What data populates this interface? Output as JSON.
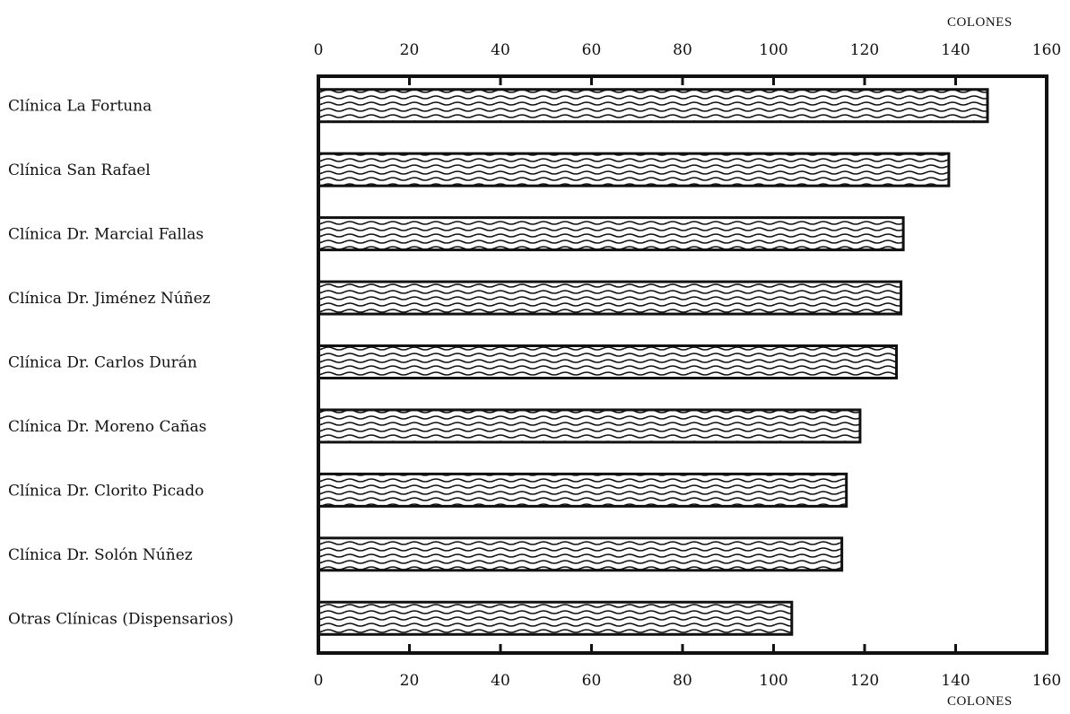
{
  "chart_data": {
    "type": "bar",
    "orientation": "horizontal",
    "title": "",
    "xlabel_top": "COLONES",
    "xlabel_bottom": "COLONES",
    "xlim": [
      0,
      160
    ],
    "xticks": [
      0,
      20,
      40,
      60,
      80,
      100,
      120,
      140,
      160
    ],
    "categories": [
      "Clínica La Fortuna",
      "Clínica San Rafael",
      "Clínica Dr. Marcial Fallas",
      "Clínica Dr. Jiménez Núñez",
      "Clínica Dr. Carlos Durán",
      "Clínica Dr. Moreno Cañas",
      "Clínica Dr. Clorito Picado",
      "Clínica Dr. Solón Núñez",
      "Otras Clínicas (Dispensarios)"
    ],
    "values": [
      147,
      138.5,
      128.5,
      128,
      127,
      119,
      116,
      115,
      104
    ],
    "bar_pattern": "wavy-hatch",
    "bar_color": "#111111",
    "grid": false
  }
}
